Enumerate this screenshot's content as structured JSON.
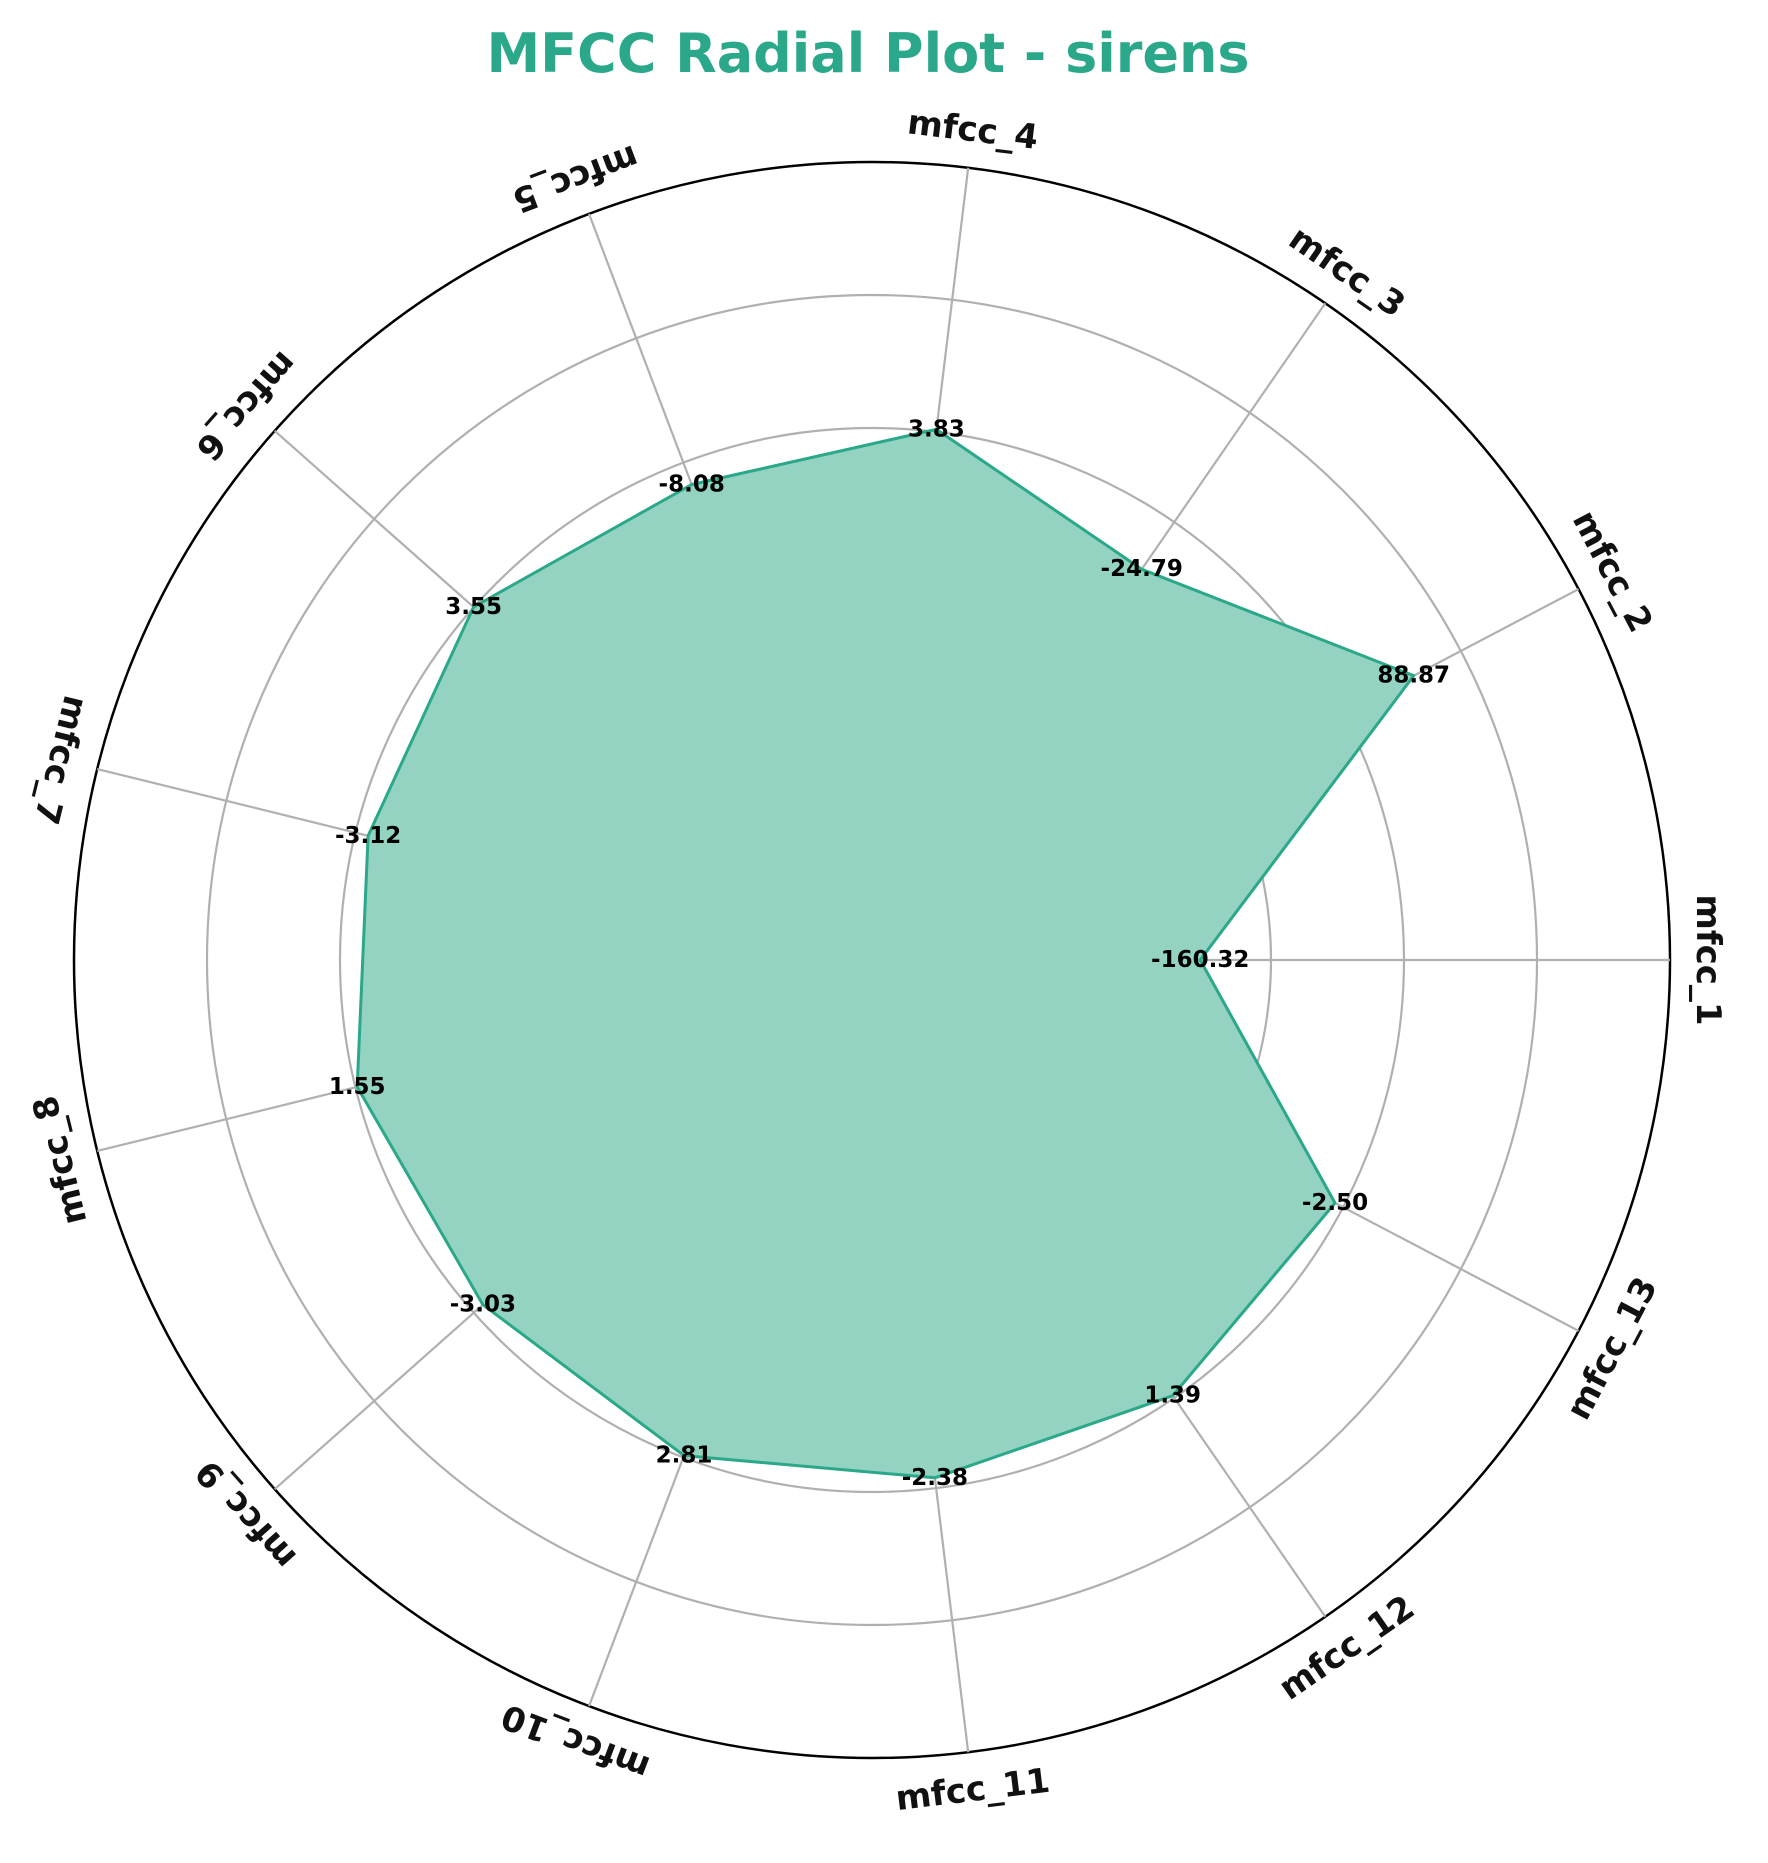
{
  "colors": {
    "accent": "#2aa889",
    "fill": "#94d3c2",
    "grid": "#b0b0b0",
    "frame": "#000000"
  },
  "chart_data": {
    "type": "radar",
    "title": "MFCC Radial Plot - sirens",
    "categories": [
      "mfcc_1",
      "mfcc_2",
      "mfcc_3",
      "mfcc_4",
      "mfcc_5",
      "mfcc_6",
      "mfcc_7",
      "mfcc_8",
      "mfcc_9",
      "mfcc_10",
      "mfcc_11",
      "mfcc_12",
      "mfcc_13"
    ],
    "values": [
      -160.32,
      88.87,
      -24.79,
      3.83,
      -8.08,
      3.55,
      -3.12,
      1.55,
      -3.03,
      2.81,
      -2.38,
      1.39,
      -2.5
    ],
    "value_labels": [
      "-160.32",
      "88.87",
      "-24.79",
      "3.83",
      "-8.08",
      "3.55",
      "-3.12",
      "1.55",
      "-3.03",
      "2.81",
      "-2.38",
      "1.39",
      "-2.50"
    ],
    "radial_extent": [
      0,
      1.5
    ],
    "radial_positions": [
      0.6169,
      1.15,
      0.8925,
      1.0047,
      0.9559,
      1.0005,
      0.9756,
      0.9967,
      0.9771,
      0.9964,
      0.9805,
      0.9951,
      0.9828
    ],
    "grid_rings": [
      0.25,
      0.5,
      0.75,
      1.0,
      1.25,
      1.5
    ],
    "radial_tick_labels_visible": false,
    "grid": true
  }
}
